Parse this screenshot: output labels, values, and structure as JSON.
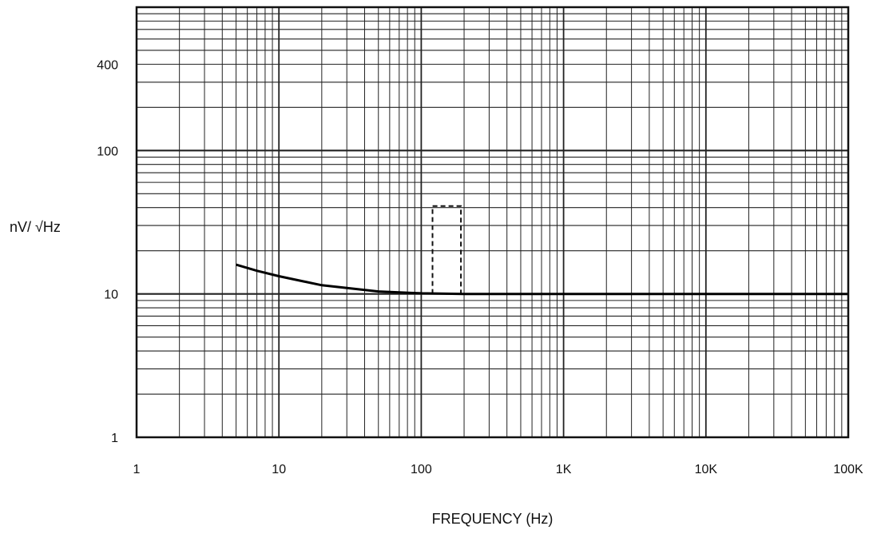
{
  "chart_data": {
    "type": "line",
    "title": "",
    "xlabel": "FREQUENCY (Hz)",
    "ylabel": "nV/ √Hz",
    "x_scale": "log",
    "y_scale": "log",
    "xlim": [
      1,
      100000
    ],
    "ylim": [
      1,
      1000
    ],
    "grid": true,
    "x_ticks": [
      {
        "value": 1,
        "label": "1"
      },
      {
        "value": 10,
        "label": "10"
      },
      {
        "value": 100,
        "label": "100"
      },
      {
        "value": 1000,
        "label": "1K"
      },
      {
        "value": 10000,
        "label": "10K"
      },
      {
        "value": 100000,
        "label": "100K"
      }
    ],
    "y_ticks": [
      {
        "value": 1,
        "label": "1"
      },
      {
        "value": 10,
        "label": "10"
      },
      {
        "value": 100,
        "label": "100"
      },
      {
        "value": 400,
        "label": "400"
      }
    ],
    "series": [
      {
        "x": [
          5,
          7,
          10,
          20,
          50,
          100,
          200,
          1000,
          10000,
          100000
        ],
        "y": [
          16,
          14.5,
          13.3,
          11.5,
          10.4,
          10.1,
          10,
          10,
          10,
          10
        ]
      }
    ],
    "annotations": [
      {
        "type": "dashed-box",
        "x": [
          120,
          190
        ],
        "y": [
          10,
          41
        ]
      }
    ]
  }
}
